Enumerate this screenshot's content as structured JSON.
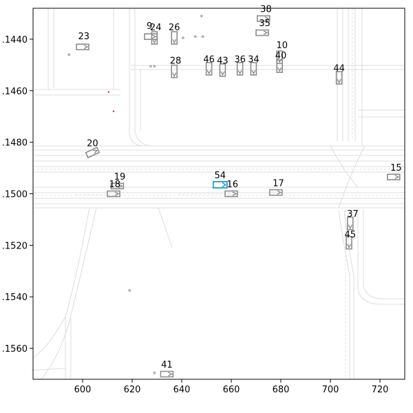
{
  "chart_data": {
    "type": "scatter",
    "title": "",
    "xlabel": "",
    "ylabel": "",
    "xlim": [
      580,
      730
    ],
    "ylim": [
      1428,
      1572
    ],
    "y_inverted": true,
    "grid": false,
    "x_ticks": [
      600,
      620,
      640,
      660,
      680,
      700,
      720
    ],
    "y_ticks": [
      1440,
      1460,
      1480,
      1500,
      1520,
      1540,
      1560
    ],
    "y_tick_labels": [
      ".1440",
      ".1460",
      ".1480",
      ".1500",
      ".1520",
      ".1540",
      ".1560"
    ],
    "colors": {
      "vehicle": "#8c8c8c",
      "ego": "#1f9bd7",
      "map": "#dcdcdc",
      "marker": "#cc2222"
    },
    "ego": {
      "id": "54",
      "x": 655.5,
      "y": 1496.5
    },
    "vehicles": [
      {
        "id": "9",
        "x": 627.5,
        "y": 1439.0,
        "heading": 0
      },
      {
        "id": "24",
        "x": 629.0,
        "y": 1439.5,
        "heading": 90
      },
      {
        "id": "26",
        "x": 637.0,
        "y": 1439.5,
        "heading": 90
      },
      {
        "id": "23",
        "x": 600.0,
        "y": 1443.0,
        "heading": 0
      },
      {
        "id": "38",
        "x": 673.0,
        "y": 1432.0,
        "heading": 0
      },
      {
        "id": "35",
        "x": 672.5,
        "y": 1437.5,
        "heading": 0
      },
      {
        "id": "10",
        "x": 679.5,
        "y": 1447.0,
        "heading": 90
      },
      {
        "id": "40",
        "x": 679.5,
        "y": 1450.5,
        "heading": 90
      },
      {
        "id": "28",
        "x": 637.0,
        "y": 1452.5,
        "heading": 90
      },
      {
        "id": "46",
        "x": 651.0,
        "y": 1451.5,
        "heading": 90
      },
      {
        "id": "43",
        "x": 656.5,
        "y": 1452.0,
        "heading": 90
      },
      {
        "id": "36",
        "x": 663.5,
        "y": 1451.5,
        "heading": 90
      },
      {
        "id": "34",
        "x": 669.0,
        "y": 1451.5,
        "heading": 90
      },
      {
        "id": "44",
        "x": 703.5,
        "y": 1455.0,
        "heading": 90
      },
      {
        "id": "20",
        "x": 604.0,
        "y": 1484.0,
        "heading": -25
      },
      {
        "id": "15",
        "x": 725.5,
        "y": 1493.5,
        "heading": 0
      },
      {
        "id": "19",
        "x": 614.0,
        "y": 1497.0,
        "heading": 0
      },
      {
        "id": "18",
        "x": 612.5,
        "y": 1500.0,
        "heading": 0
      },
      {
        "id": "16",
        "x": 660.0,
        "y": 1500.0,
        "heading": 0
      },
      {
        "id": "17",
        "x": 678.0,
        "y": 1499.5,
        "heading": 0
      },
      {
        "id": "37",
        "x": 708.0,
        "y": 1511.5,
        "heading": 90
      },
      {
        "id": "45",
        "x": 707.5,
        "y": 1519.0,
        "heading": 90
      },
      {
        "id": "41",
        "x": 634.0,
        "y": 1570.0,
        "heading": 0
      }
    ],
    "markers": [
      {
        "x": 610.5,
        "y": 1460.5
      },
      {
        "x": 612.5,
        "y": 1468.0
      }
    ],
    "scatter_dots": [
      {
        "x": 594.5,
        "y": 1446.0
      },
      {
        "x": 640.5,
        "y": 1439.5
      },
      {
        "x": 645.5,
        "y": 1439.0
      },
      {
        "x": 648.5,
        "y": 1439.0
      },
      {
        "x": 648.0,
        "y": 1431.0
      },
      {
        "x": 629.0,
        "y": 1569.5
      },
      {
        "x": 619.0,
        "y": 1537.5
      },
      {
        "x": 627.5,
        "y": 1450.5
      },
      {
        "x": 629.0,
        "y": 1450.5
      }
    ],
    "labels": [
      {
        "id": "9",
        "x": 627.0,
        "y": 1436.0
      },
      {
        "id": "24",
        "x": 629.5,
        "y": 1436.5
      },
      {
        "id": "26",
        "x": 637.0,
        "y": 1436.5
      },
      {
        "id": "23",
        "x": 600.5,
        "y": 1440.0
      },
      {
        "id": "38",
        "x": 674.0,
        "y": 1429.5
      },
      {
        "id": "35",
        "x": 673.5,
        "y": 1435.0
      },
      {
        "id": "10",
        "x": 680.5,
        "y": 1443.5
      },
      {
        "id": "40",
        "x": 680.0,
        "y": 1447.5
      },
      {
        "id": "28",
        "x": 637.5,
        "y": 1449.5
      },
      {
        "id": "46",
        "x": 651.0,
        "y": 1449.0
      },
      {
        "id": "43",
        "x": 656.5,
        "y": 1449.5
      },
      {
        "id": "36",
        "x": 663.5,
        "y": 1449.0
      },
      {
        "id": "34",
        "x": 669.0,
        "y": 1449.0
      },
      {
        "id": "44",
        "x": 703.5,
        "y": 1452.5
      },
      {
        "id": "20",
        "x": 604.0,
        "y": 1481.5
      },
      {
        "id": "15",
        "x": 726.5,
        "y": 1491.0
      },
      {
        "id": "19",
        "x": 615.0,
        "y": 1494.5
      },
      {
        "id": "18",
        "x": 613.0,
        "y": 1497.5
      },
      {
        "id": "54",
        "x": 655.5,
        "y": 1494.0
      },
      {
        "id": "16",
        "x": 660.5,
        "y": 1497.5
      },
      {
        "id": "17",
        "x": 679.0,
        "y": 1497.0
      },
      {
        "id": "37",
        "x": 709.0,
        "y": 1509.0
      },
      {
        "id": "45",
        "x": 708.0,
        "y": 1517.0
      },
      {
        "id": "41",
        "x": 634.0,
        "y": 1567.5
      }
    ]
  }
}
